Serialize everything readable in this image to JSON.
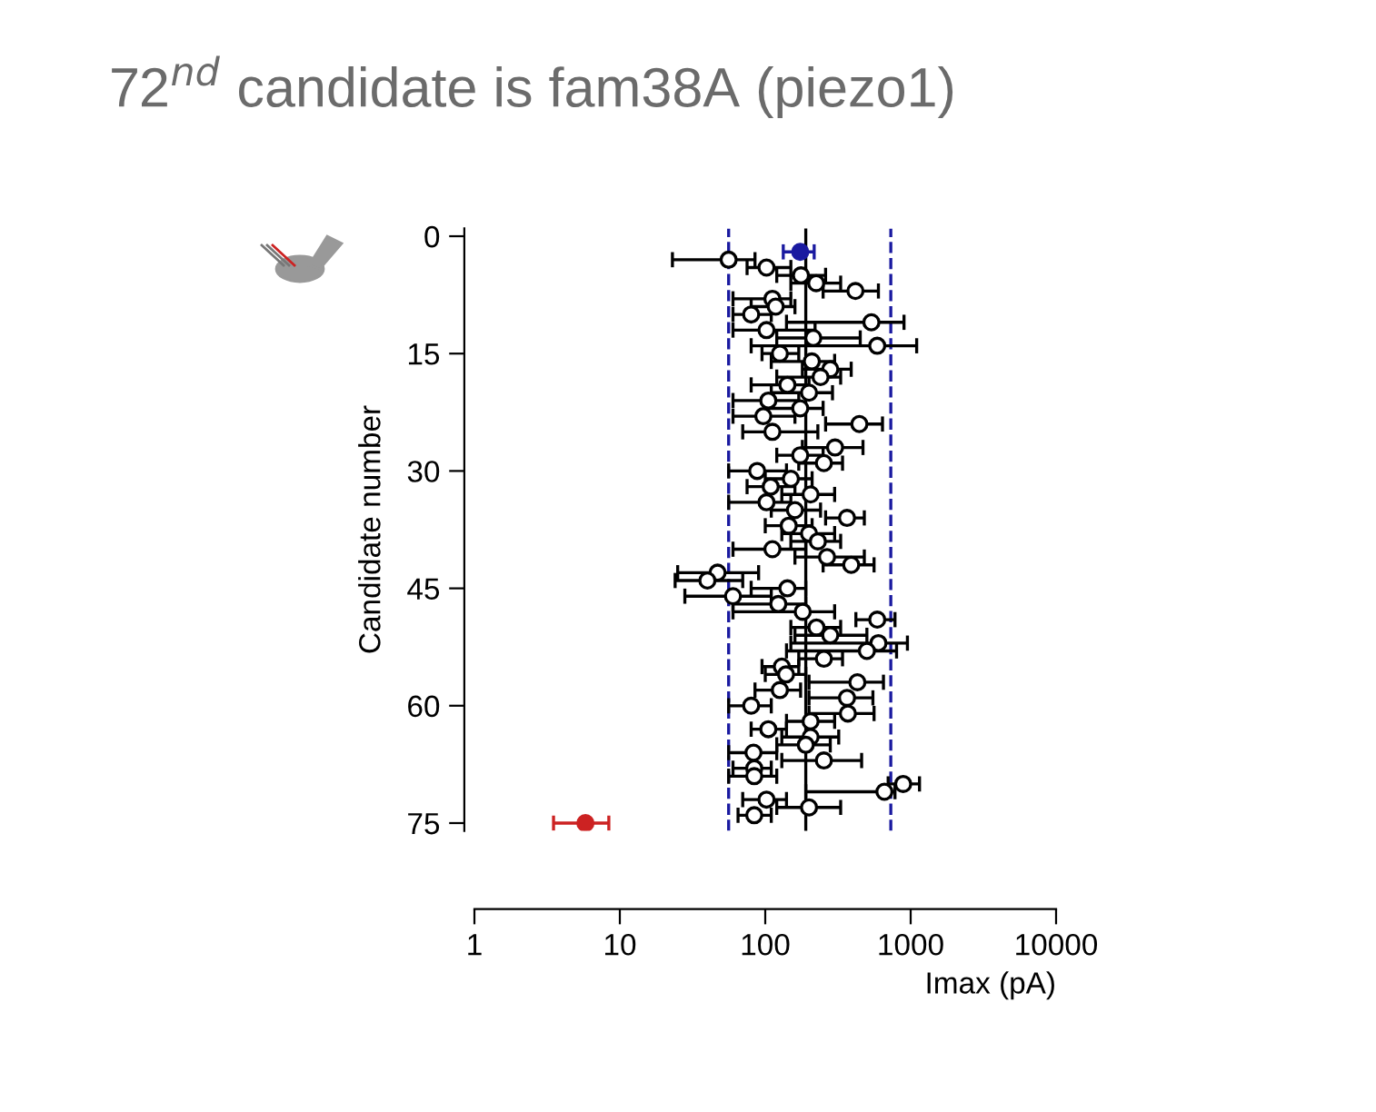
{
  "chart_data": {
    "type": "scatter",
    "title": "72$^{nd}$ candidate is fam38A (piezo1)",
    "xlabel": "Imax (pA)",
    "ylabel": "Candidate number",
    "log": "x",
    "xlim": [
      1,
      10000
    ],
    "xticks": [
      1,
      10,
      100,
      1000,
      10000
    ],
    "ylim": [
      76,
      -1
    ],
    "yticks": [
      0,
      15,
      30,
      45,
      60,
      75
    ],
    "grid": false,
    "legend": false,
    "marker": "circle",
    "ref_lines": [
      {
        "axis": "x",
        "value": 190,
        "color": "#000000",
        "line_style": "solid"
      },
      {
        "axis": "x",
        "value": 56,
        "color": "#1a1aa0",
        "line_style": "dashed"
      },
      {
        "axis": "x",
        "value": 730,
        "color": "#1a1aa0",
        "line_style": "dashed"
      }
    ],
    "series": [
      {
        "color": "#000000",
        "x": [
          56,
          102,
          176,
          224,
          417,
          112,
          118,
          80,
          537,
          102,
          214,
          589,
          126,
          209,
          280,
          240,
          142,
          200,
          105,
          174,
          97,
          444,
          112,
          302,
          174,
          253,
          88,
          150,
          109,
          205,
          102,
          160,
          365,
          145,
          200,
          230,
          112,
          266,
          390,
          47,
          40,
          142,
          60,
          123,
          181,
          589,
          225,
          280,
          600,
          500,
          253,
          130,
          139,
          430,
          126,
          365,
          80,
          370,
          205,
          105,
          205,
          190,
          83,
          253,
          84,
          84,
          888,
          660,
          102,
          200,
          84
        ],
        "values": [
          3,
          4,
          5,
          6,
          7,
          8,
          9,
          10,
          11,
          12,
          13,
          14,
          15,
          16,
          17,
          18,
          19,
          20,
          21,
          22,
          23,
          24,
          25,
          27,
          28,
          29,
          30,
          31,
          32,
          33,
          34,
          35,
          36,
          37,
          38,
          39,
          40,
          41,
          42,
          43,
          44,
          45,
          46,
          47,
          48,
          49,
          50,
          51,
          52,
          53,
          54,
          55,
          56,
          57,
          58,
          59,
          60,
          61,
          62,
          63,
          64,
          65,
          66,
          67,
          68,
          69,
          70,
          71,
          72,
          73,
          74
        ],
        "xerrors": [
          [
            23,
            85
          ],
          [
            75,
            150
          ],
          [
            120,
            260
          ],
          [
            150,
            330
          ],
          [
            250,
            600
          ],
          [
            60,
            150
          ],
          [
            80,
            160
          ],
          [
            60,
            110
          ],
          [
            140,
            900
          ],
          [
            60,
            220
          ],
          [
            120,
            450
          ],
          [
            80,
            1100
          ],
          [
            95,
            170
          ],
          [
            110,
            300
          ],
          [
            180,
            390
          ],
          [
            120,
            330
          ],
          [
            80,
            200
          ],
          [
            110,
            290
          ],
          [
            60,
            170
          ],
          [
            100,
            250
          ],
          [
            60,
            160
          ],
          [
            260,
            640
          ],
          [
            70,
            230
          ],
          [
            180,
            470
          ],
          [
            120,
            250
          ],
          [
            170,
            340
          ],
          [
            56,
            140
          ],
          [
            100,
            210
          ],
          [
            75,
            160
          ],
          [
            130,
            300
          ],
          [
            56,
            150
          ],
          [
            110,
            240
          ],
          [
            260,
            480
          ],
          [
            100,
            210
          ],
          [
            130,
            300
          ],
          [
            150,
            330
          ],
          [
            60,
            190
          ],
          [
            160,
            480
          ],
          [
            250,
            560
          ],
          [
            25,
            90
          ],
          [
            24,
            70
          ],
          [
            80,
            190
          ],
          [
            28,
            110
          ],
          [
            60,
            190
          ],
          [
            60,
            300
          ],
          [
            420,
            780
          ],
          [
            150,
            330
          ],
          [
            160,
            500
          ],
          [
            150,
            950
          ],
          [
            140,
            800
          ],
          [
            170,
            340
          ],
          [
            95,
            170
          ],
          [
            100,
            190
          ],
          [
            200,
            650
          ],
          [
            85,
            175
          ],
          [
            200,
            550
          ],
          [
            56,
            110
          ],
          [
            200,
            560
          ],
          [
            140,
            300
          ],
          [
            80,
            140
          ],
          [
            130,
            320
          ],
          [
            120,
            280
          ],
          [
            56,
            120
          ],
          [
            130,
            460
          ],
          [
            60,
            110
          ],
          [
            56,
            120
          ],
          [
            700,
            1150
          ],
          [
            190,
            780
          ],
          [
            70,
            140
          ],
          [
            120,
            330
          ],
          [
            65,
            110
          ]
        ]
      },
      {
        "color": "#1a1aa0",
        "x": [
          174
        ],
        "values": [
          2
        ],
        "xerrors": [
          [
            133,
            217
          ]
        ]
      },
      {
        "color": "#cc2222",
        "x": [
          5.8
        ],
        "values": [
          75
        ],
        "xerrors": [
          [
            3.5,
            8.4
          ]
        ]
      }
    ]
  }
}
